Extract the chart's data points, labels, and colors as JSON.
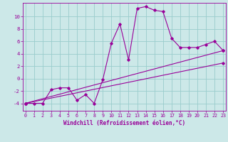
{
  "xlabel": "Windchill (Refroidissement éolien,°C)",
  "bg_color": "#cce8e8",
  "grid_color": "#99cccc",
  "line_color": "#990099",
  "x_ticks": [
    0,
    1,
    2,
    3,
    4,
    5,
    6,
    7,
    8,
    9,
    10,
    11,
    12,
    13,
    14,
    15,
    16,
    17,
    18,
    19,
    20,
    21,
    22,
    23
  ],
  "y_ticks": [
    -4,
    -2,
    0,
    2,
    4,
    6,
    8,
    10
  ],
  "xlim": [
    -0.3,
    23.3
  ],
  "ylim": [
    -5.2,
    12.2
  ],
  "curve1_x": [
    0,
    1,
    2,
    3,
    4,
    5,
    6,
    7,
    8,
    9,
    10,
    11,
    12,
    13,
    14,
    15,
    16,
    17,
    18,
    19,
    20,
    21,
    22,
    23
  ],
  "curve1_y": [
    -4,
    -4,
    -4,
    -1.8,
    -1.5,
    -1.5,
    -3.5,
    -2.6,
    -4,
    -0.2,
    5.7,
    8.8,
    3.0,
    11.3,
    11.6,
    11.0,
    10.8,
    6.5,
    5.0,
    5.0,
    5.0,
    5.5,
    6.0,
    4.5
  ],
  "curve2_x": [
    0,
    23
  ],
  "curve2_y": [
    -4,
    4.5
  ],
  "curve3_x": [
    0,
    23
  ],
  "curve3_y": [
    -4,
    2.5
  ],
  "tick_fontsize": 4.8,
  "xlabel_fontsize": 5.5,
  "marker_size": 1.8,
  "line_width": 0.8
}
